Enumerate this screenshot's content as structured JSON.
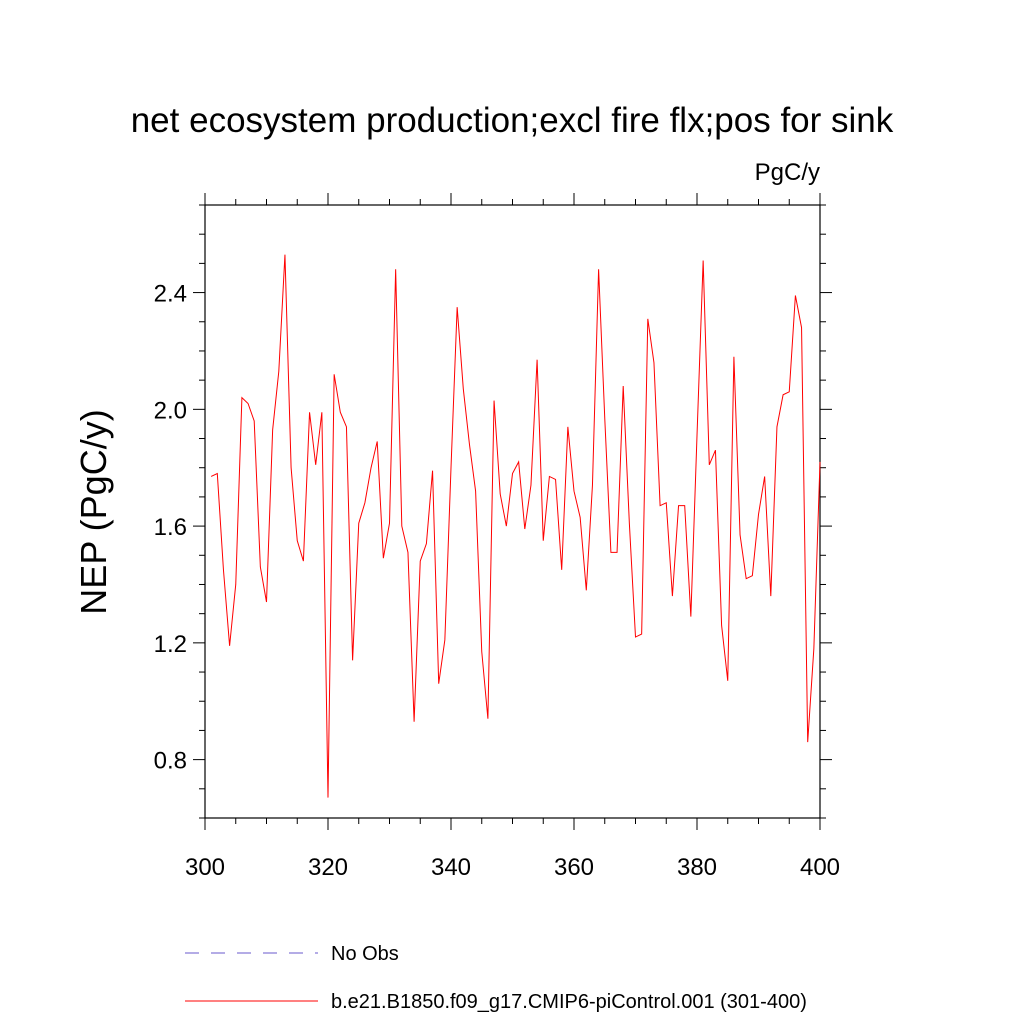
{
  "chart_data": {
    "type": "line",
    "title": "net ecosystem production;excl fire flx;pos for sink",
    "units_label": "PgC/y",
    "xlabel": "",
    "ylabel": "NEP  (PgC/y)",
    "xlim": [
      300,
      400
    ],
    "ylim": [
      0.6,
      2.7
    ],
    "x_ticks": [
      300,
      320,
      340,
      360,
      380,
      400
    ],
    "x_tick_labels": [
      "300",
      "320",
      "340",
      "360",
      "380",
      "400"
    ],
    "y_ticks": [
      0.8,
      1.2,
      1.6,
      2.0,
      2.4
    ],
    "y_tick_labels": [
      "0.8",
      "1.2",
      "1.6",
      "2.0",
      "2.4"
    ],
    "legend": [
      {
        "name": "No Obs",
        "color": "#6a5acd",
        "dash": "dashed"
      },
      {
        "name": "b.e21.B1850.f09_g17.CMIP6-piControl.001 (301-400)",
        "color": "#ff0000",
        "dash": "solid"
      }
    ],
    "series": [
      {
        "name": "b.e21.B1850.f09_g17.CMIP6-piControl.001 (301-400)",
        "color": "#ff0000",
        "x": [
          301,
          302,
          303,
          304,
          305,
          306,
          307,
          308,
          309,
          310,
          311,
          312,
          313,
          314,
          315,
          316,
          317,
          318,
          319,
          320,
          321,
          322,
          323,
          324,
          325,
          326,
          327,
          328,
          329,
          330,
          331,
          332,
          333,
          334,
          335,
          336,
          337,
          338,
          339,
          340,
          341,
          342,
          343,
          344,
          345,
          346,
          347,
          348,
          349,
          350,
          351,
          352,
          353,
          354,
          355,
          356,
          357,
          358,
          359,
          360,
          361,
          362,
          363,
          364,
          365,
          366,
          367,
          368,
          369,
          370,
          371,
          372,
          373,
          374,
          375,
          376,
          377,
          378,
          379,
          380,
          381,
          382,
          383,
          384,
          385,
          386,
          387,
          388,
          389,
          390,
          391,
          392,
          393,
          394,
          395,
          396,
          397,
          398,
          399,
          400
        ],
        "values": [
          1.77,
          1.78,
          1.45,
          1.19,
          1.4,
          2.04,
          2.02,
          1.96,
          1.46,
          1.34,
          1.93,
          2.13,
          2.53,
          1.8,
          1.55,
          1.48,
          1.99,
          1.81,
          1.99,
          0.67,
          2.12,
          1.99,
          1.94,
          1.14,
          1.61,
          1.68,
          1.8,
          1.89,
          1.49,
          1.61,
          2.48,
          1.6,
          1.51,
          0.93,
          1.48,
          1.54,
          1.79,
          1.06,
          1.21,
          1.8,
          2.35,
          2.07,
          1.88,
          1.72,
          1.17,
          0.94,
          2.03,
          1.71,
          1.6,
          1.78,
          1.82,
          1.59,
          1.74,
          2.17,
          1.55,
          1.77,
          1.76,
          1.45,
          1.94,
          1.72,
          1.63,
          1.38,
          1.74,
          2.48,
          1.97,
          1.51,
          1.51,
          2.08,
          1.61,
          1.22,
          1.23,
          2.31,
          2.16,
          1.67,
          1.68,
          1.36,
          1.67,
          1.67,
          1.29,
          1.91,
          2.51,
          1.81,
          1.86,
          1.26,
          1.07,
          2.18,
          1.57,
          1.42,
          1.43,
          1.64,
          1.77,
          1.36,
          1.94,
          2.05,
          2.06,
          2.39,
          2.28,
          0.86,
          1.18,
          1.82
        ]
      }
    ]
  }
}
